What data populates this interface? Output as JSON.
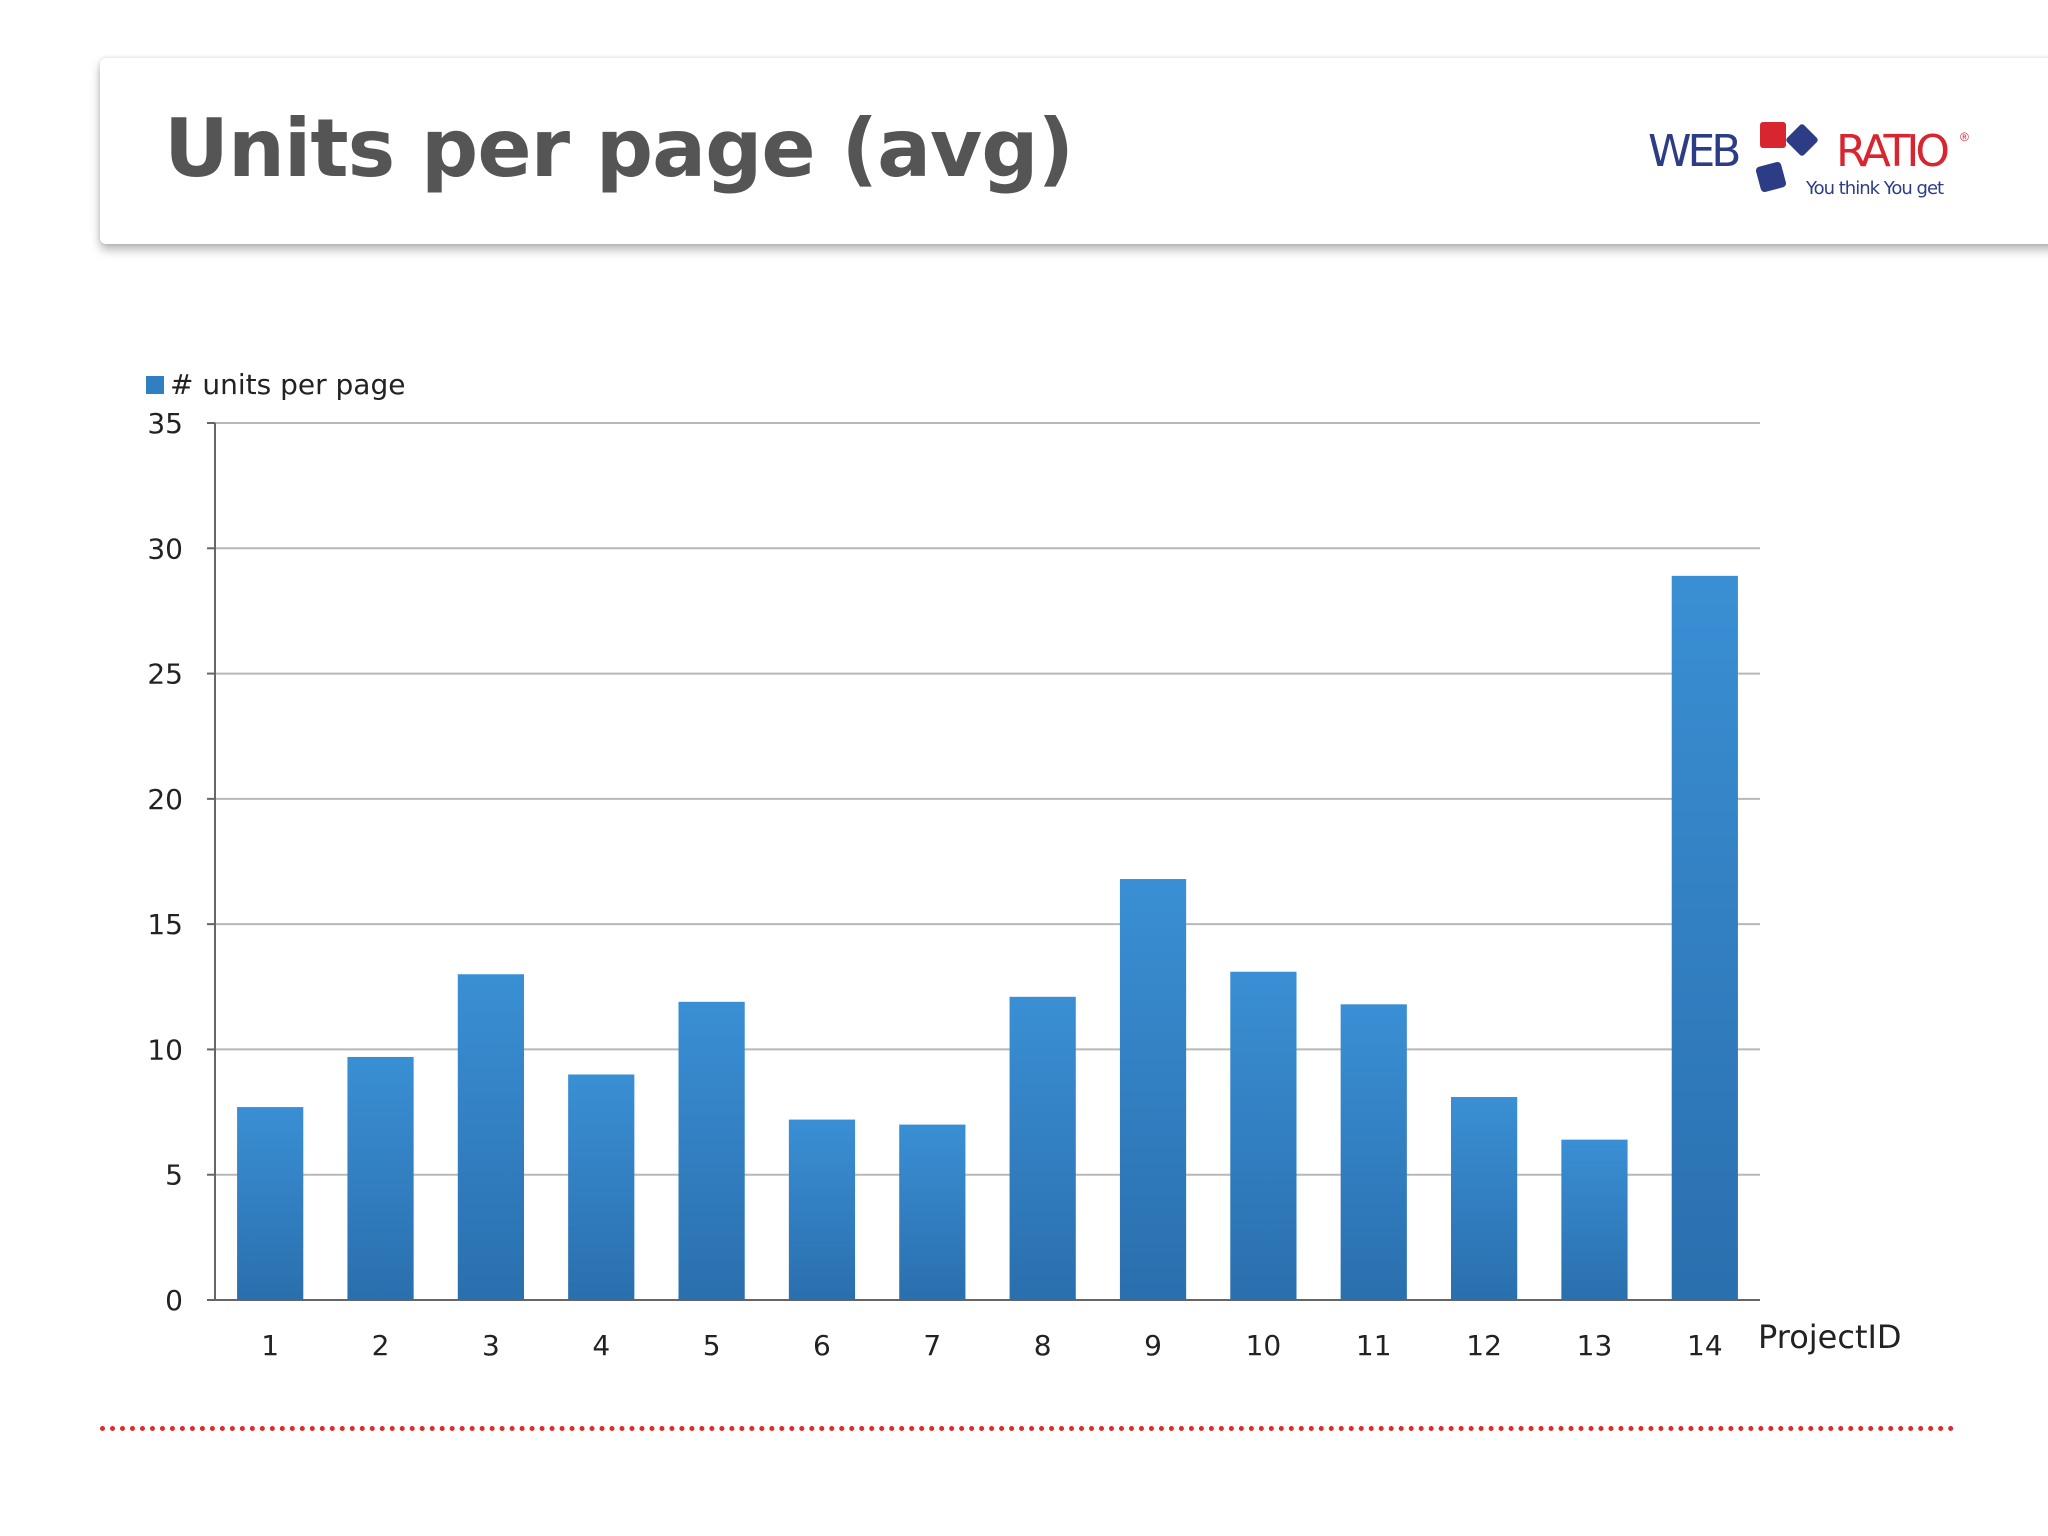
{
  "slide": {
    "title": "Units per page (avg)"
  },
  "logo": {
    "word_left": "WEB",
    "word_right": "RATIO",
    "registered": "®",
    "tagline": "You think You get",
    "colors": {
      "blue": "#2d3d85",
      "red": "#d7262f"
    }
  },
  "chart_data": {
    "type": "bar",
    "title": "",
    "xlabel": "ProjectID",
    "ylabel": "",
    "legend": {
      "label": "# units per page",
      "placement": "top-left"
    },
    "categories": [
      "1",
      "2",
      "3",
      "4",
      "5",
      "6",
      "7",
      "8",
      "9",
      "10",
      "11",
      "12",
      "13",
      "14"
    ],
    "series": [
      {
        "name": "# units per page",
        "color": "#2f7fc1",
        "values": [
          7.7,
          9.7,
          13.0,
          9.0,
          11.9,
          7.2,
          7.0,
          12.1,
          16.8,
          13.1,
          11.8,
          8.1,
          6.4,
          28.9
        ]
      }
    ],
    "ylim": [
      0,
      35
    ],
    "yticks": [
      0,
      5,
      10,
      15,
      20,
      25,
      30,
      35
    ],
    "grid": true
  }
}
